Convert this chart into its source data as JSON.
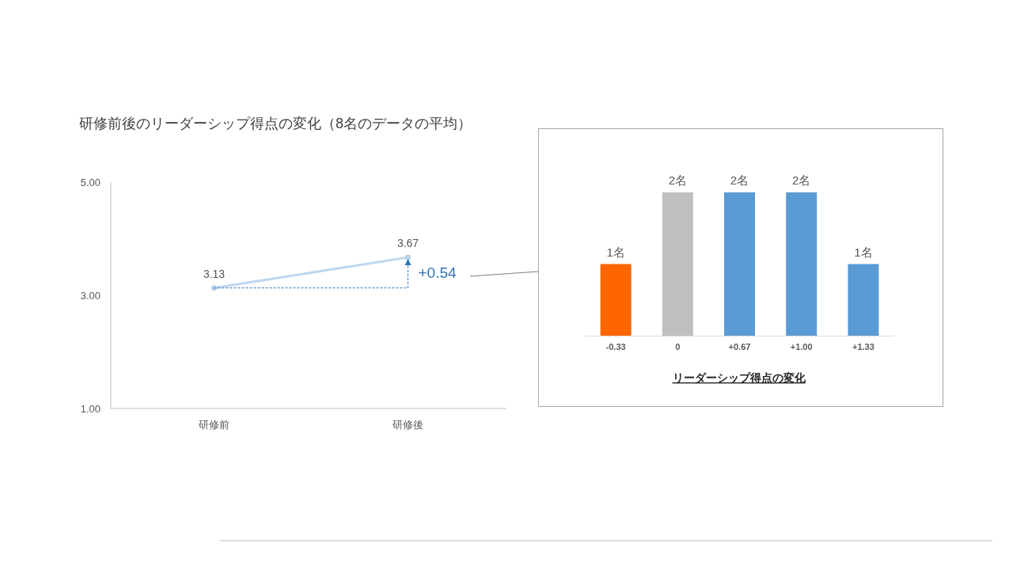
{
  "chart_data": [
    {
      "type": "line",
      "title": "研修前後のリーダーシップ得点の変化（8名のデータの平均）",
      "categories": [
        "研修前",
        "研修後"
      ],
      "series": [
        {
          "color": "#bdd7ee",
          "values": [
            3.13,
            3.67
          ]
        }
      ],
      "ylim": [
        1,
        5
      ],
      "yticks": [
        {
          "value": 1,
          "label": "1.00"
        },
        {
          "value": 3,
          "label": "3.00"
        },
        {
          "value": 5,
          "label": "5.00"
        }
      ],
      "data_labels": true,
      "marker": "circle",
      "annotations": [
        "+0.54"
      ]
    },
    {
      "type": "bar",
      "xlabel": "リーダーシップ得点の変化",
      "categories": [
        "-0.33",
        "0",
        "+0.67",
        "+1.00",
        "+1.33"
      ],
      "values": [
        1,
        2,
        2,
        2,
        1
      ],
      "colors": [
        "#ff6600",
        "#bfbfbf",
        "#5b9bd5",
        "#5b9bd5",
        "#5b9bd5"
      ],
      "value_labels": [
        "1名",
        "2名",
        "2名",
        "2名",
        "1名"
      ]
    }
  ]
}
